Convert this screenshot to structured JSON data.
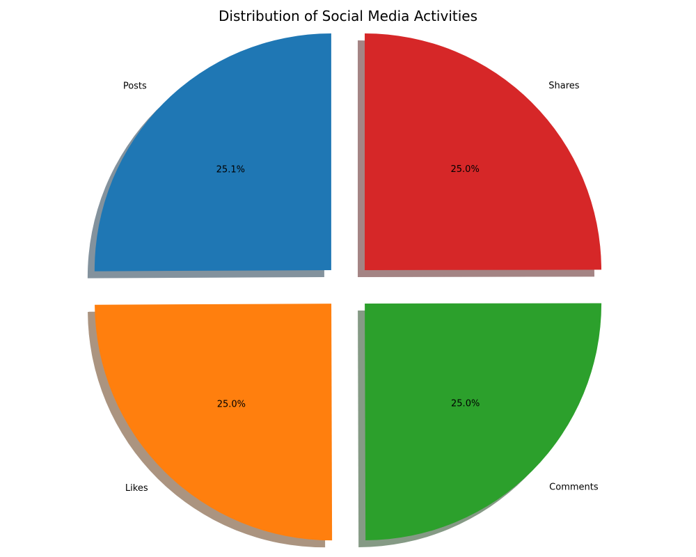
{
  "chart_data": {
    "type": "pie",
    "title": "Distribution of Social Media Activities",
    "labels": [
      "Posts",
      "Likes",
      "Comments",
      "Shares"
    ],
    "values": [
      25.1,
      25.0,
      25.0,
      25.0
    ],
    "percent_labels": [
      "25.1%",
      "25.0%",
      "25.0%",
      "25.0%"
    ],
    "colors": [
      "#1f77b4",
      "#ff7f0e",
      "#2ca02c",
      "#d62728"
    ],
    "start_angle_deg": 90,
    "direction": "counterclockwise",
    "explode": [
      0.1,
      0.1,
      0.1,
      0.1
    ],
    "shadow": true,
    "legend": "none"
  }
}
